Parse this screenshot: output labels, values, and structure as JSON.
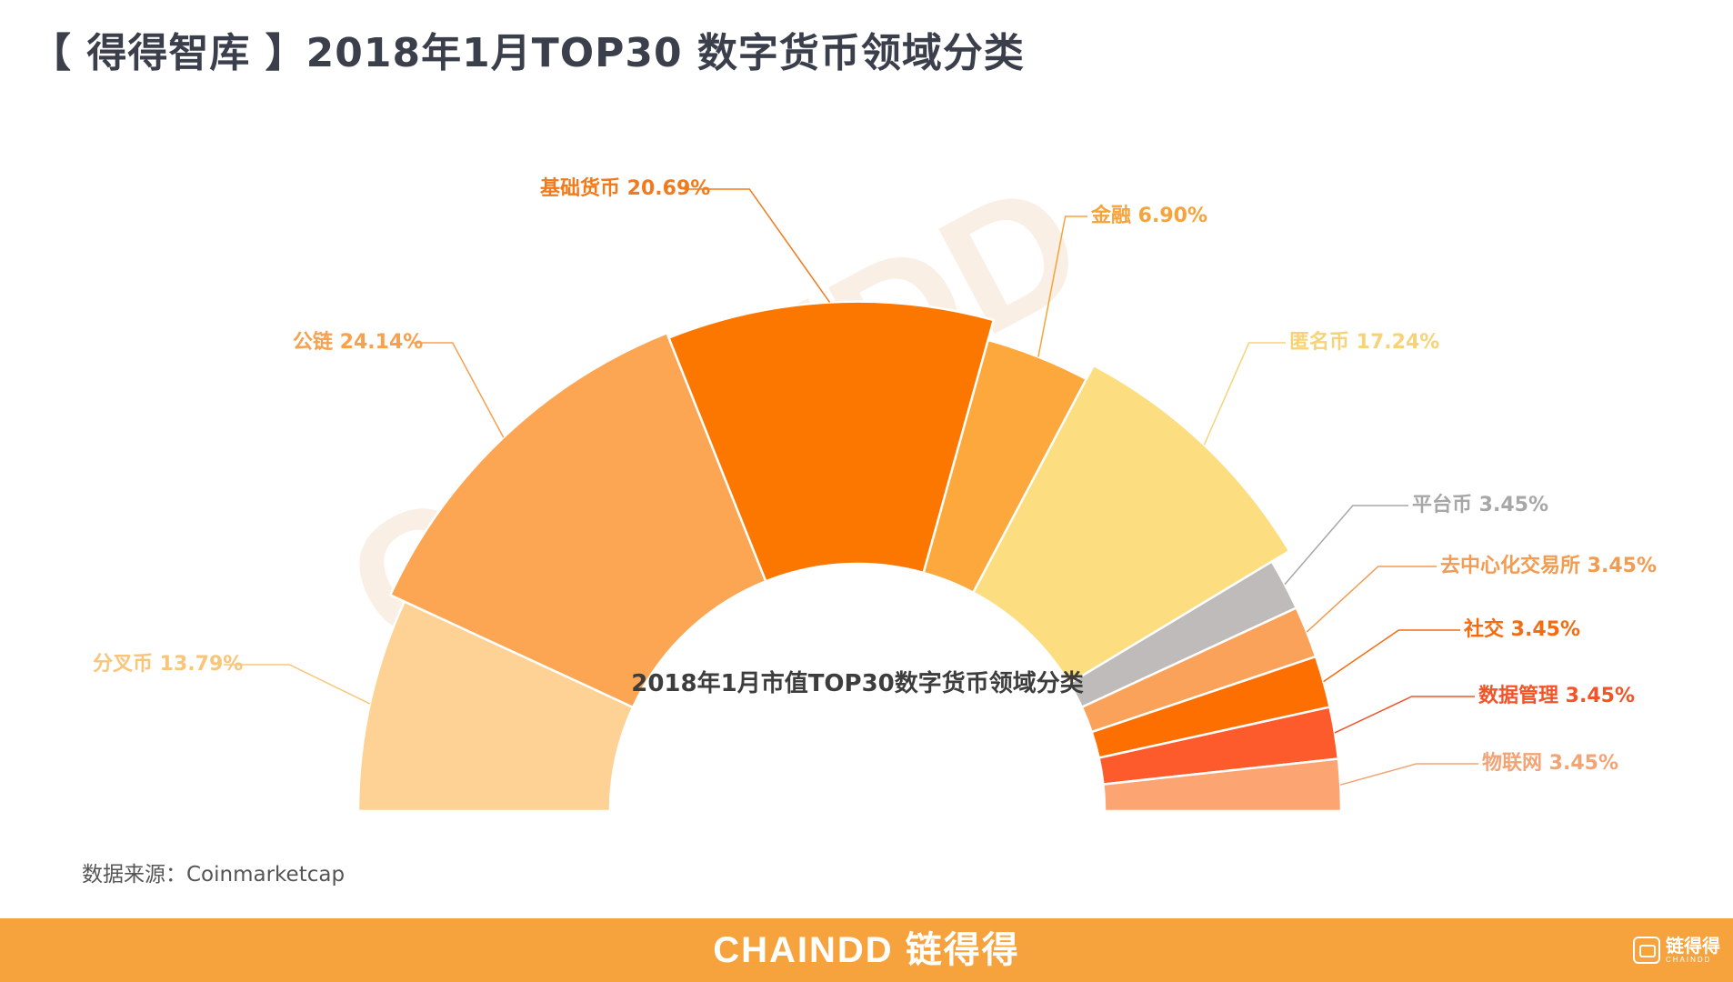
{
  "title": "【 得得智库 】2018年1月TOP30 数字货币领域分类",
  "source": "数据来源：Coinmarketcap",
  "footer": {
    "brand": "CHAINDD 链得得",
    "logo_cn": "链得得",
    "logo_en": "CHAINDD"
  },
  "colors": {
    "footer_bg": "#f6a33d"
  },
  "chart_data": {
    "type": "pie",
    "style": "half-donut",
    "center_label": "2018年1月市值TOP30数字货币领域分类",
    "slices": [
      {
        "name": "分叉币",
        "value": 13.79,
        "label": "分叉币 13.79%",
        "color": "#fdd294",
        "label_color": "#f8c57a"
      },
      {
        "name": "公链",
        "value": 24.14,
        "label": "公链 24.14%",
        "color": "#fca654",
        "label_color": "#f7a04e"
      },
      {
        "name": "基础货币",
        "value": 20.69,
        "label": "基础货币 20.69%",
        "color": "#fc7700",
        "label_color": "#f07a1c"
      },
      {
        "name": "金融",
        "value": 6.9,
        "label": "金融 6.90%",
        "color": "#fca83c",
        "label_color": "#f5a33a"
      },
      {
        "name": "匿名币",
        "value": 17.24,
        "label": "匿名币 17.24%",
        "color": "#fcdd7f",
        "label_color": "#f6d378"
      },
      {
        "name": "平台币",
        "value": 3.45,
        "label": "平台币 3.45%",
        "color": "#bebbba",
        "label_color": "#a7a7a7"
      },
      {
        "name": "去中心化交易所",
        "value": 3.45,
        "label": "去中心化交易所 3.45%",
        "color": "#fba25a",
        "label_color": "#f39b50"
      },
      {
        "name": "社交",
        "value": 3.45,
        "label": "社交 3.45%",
        "color": "#fd6f00",
        "label_color": "#f56b10"
      },
      {
        "name": "数据管理",
        "value": 3.45,
        "label": "数据管理 3.45%",
        "color": "#fe5b2c",
        "label_color": "#f2542a"
      },
      {
        "name": "物联网",
        "value": 3.45,
        "label": "物联网 3.45%",
        "color": "#fda473",
        "label_color": "#f2a476"
      }
    ]
  }
}
